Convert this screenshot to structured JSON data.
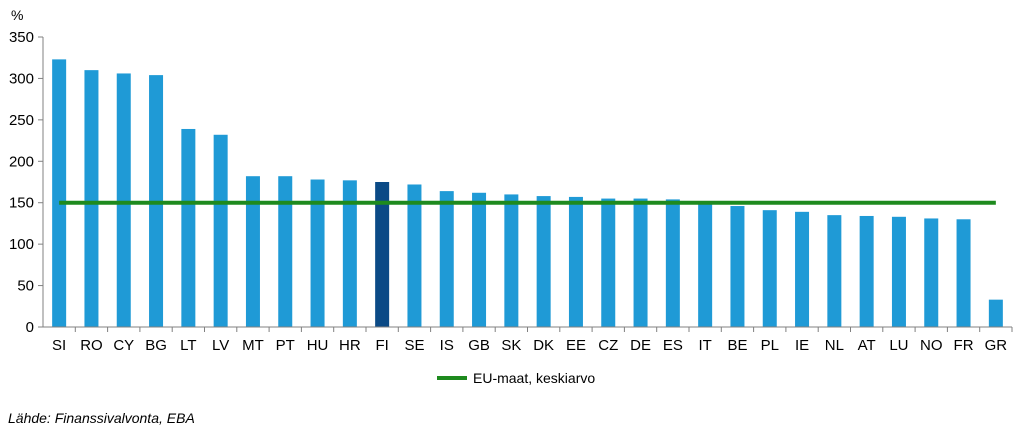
{
  "chart_data": {
    "type": "bar",
    "unit_label": "%",
    "categories": [
      "SI",
      "RO",
      "CY",
      "BG",
      "LT",
      "LV",
      "MT",
      "PT",
      "HU",
      "HR",
      "FI",
      "SE",
      "IS",
      "GB",
      "SK",
      "DK",
      "EE",
      "CZ",
      "DE",
      "ES",
      "IT",
      "BE",
      "PL",
      "IE",
      "NL",
      "AT",
      "LU",
      "NO",
      "FR",
      "GR"
    ],
    "values": [
      323,
      310,
      306,
      304,
      239,
      232,
      182,
      182,
      178,
      177,
      175,
      172,
      164,
      162,
      160,
      158,
      157,
      155,
      155,
      154,
      150,
      146,
      141,
      139,
      135,
      134,
      133,
      131,
      130,
      33
    ],
    "highlight_category": "FI",
    "colors": {
      "bar": "#1f9ad6",
      "highlight": "#0b4a86",
      "reference_line": "#1e8a1e",
      "axis": "#808080"
    },
    "ylim": [
      0,
      350
    ],
    "yticks": [
      0,
      50,
      100,
      150,
      200,
      250,
      300,
      350
    ],
    "reference_line": {
      "value": 150,
      "name": "EU-maat, keskiarvo"
    },
    "grid": false,
    "legend_position": "bottom-center"
  },
  "source_text": "Lähde: Finanssivalvonta, EBA"
}
